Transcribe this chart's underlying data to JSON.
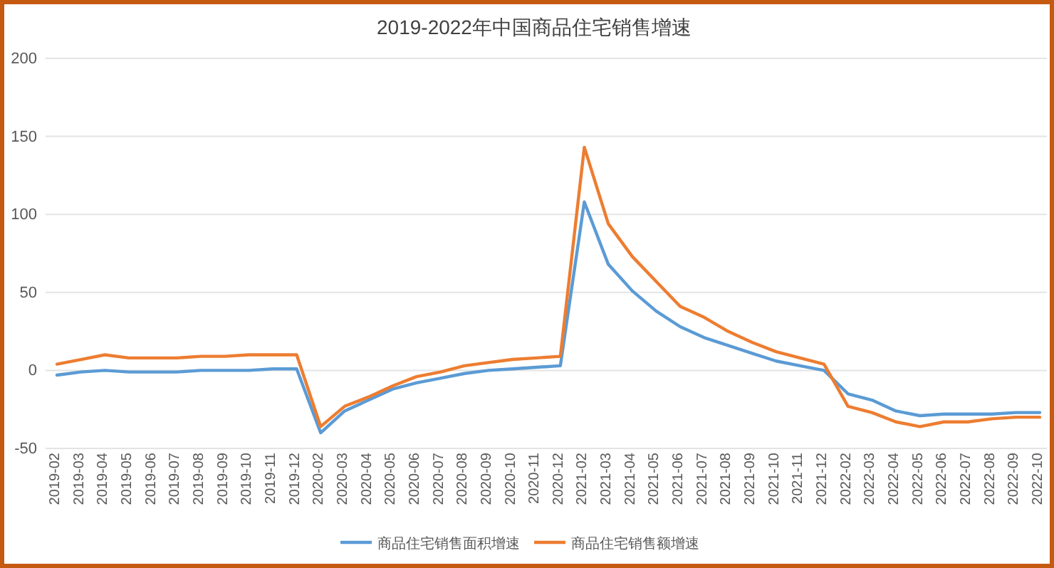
{
  "chart_data": {
    "type": "line",
    "title": "2019-2022年中国商品住宅销售增速",
    "categories": [
      "2019-02",
      "2019-03",
      "2019-04",
      "2019-05",
      "2019-06",
      "2019-07",
      "2019-08",
      "2019-09",
      "2019-10",
      "2019-11",
      "2019-12",
      "2020-02",
      "2020-03",
      "2020-04",
      "2020-05",
      "2020-06",
      "2020-07",
      "2020-08",
      "2020-09",
      "2020-10",
      "2020-11",
      "2020-12",
      "2021-02",
      "2021-03",
      "2021-04",
      "2021-05",
      "2021-06",
      "2021-07",
      "2021-08",
      "2021-09",
      "2021-10",
      "2021-11",
      "2021-12",
      "2022-02",
      "2022-03",
      "2022-04",
      "2022-05",
      "2022-06",
      "2022-07",
      "2022-08",
      "2022-09",
      "2022-10"
    ],
    "series": [
      {
        "name": "商品住宅销售面积增速",
        "color": "#5b9bd5",
        "values": [
          -3,
          -1,
          0,
          -1,
          -1,
          -1,
          0,
          0,
          0,
          1,
          1,
          -40,
          -26,
          -19,
          -12,
          -8,
          -5,
          -2,
          0,
          1,
          2,
          3,
          108,
          68,
          51,
          38,
          28,
          21,
          16,
          11,
          6,
          3,
          0,
          -15,
          -19,
          -26,
          -29,
          -28,
          -28,
          -28,
          -27,
          -27
        ]
      },
      {
        "name": "商品住宅销售额增速",
        "color": "#ed7d31",
        "values": [
          4,
          7,
          10,
          8,
          8,
          8,
          9,
          9,
          10,
          10,
          10,
          -36,
          -23,
          -17,
          -10,
          -4,
          -1,
          3,
          5,
          7,
          8,
          9,
          143,
          94,
          73,
          57,
          41,
          34,
          25,
          18,
          12,
          8,
          4,
          -23,
          -27,
          -33,
          -36,
          -33,
          -33,
          -31,
          -30,
          -30
        ]
      }
    ],
    "ylim": [
      -50,
      200
    ],
    "yticks": [
      -50,
      0,
      50,
      100,
      150,
      200
    ],
    "grid": "y",
    "legend": "bottom",
    "line_style": "solid",
    "marker": "none"
  }
}
